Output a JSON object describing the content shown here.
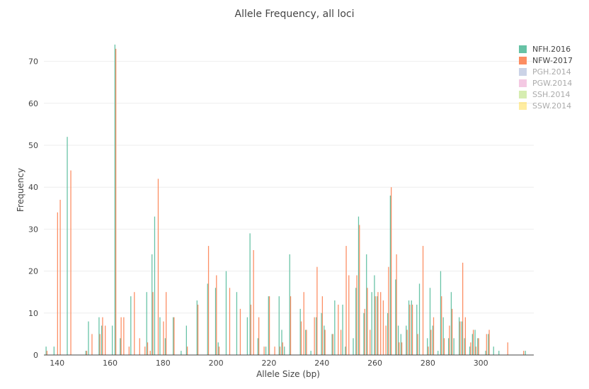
{
  "chart_data": {
    "type": "bar",
    "title": "Allele Frequency, all loci",
    "xlabel": "Allele Size (bp)",
    "ylabel": "Frequency",
    "xlim": [
      135,
      320
    ],
    "ylim": [
      0,
      75
    ],
    "x_ticks": [
      140,
      160,
      180,
      200,
      220,
      240,
      260,
      280,
      300
    ],
    "y_ticks": [
      0,
      10,
      20,
      30,
      40,
      50,
      60,
      70
    ],
    "grid": "horizontal",
    "legend_position": "top-right",
    "series": [
      {
        "name": "NFH.2016",
        "color": "#66c2a5",
        "visible": true,
        "points": [
          [
            136,
            2
          ],
          [
            139,
            2
          ],
          [
            144,
            52
          ],
          [
            151,
            1
          ],
          [
            152,
            8
          ],
          [
            156,
            9
          ],
          [
            157,
            7
          ],
          [
            161,
            7
          ],
          [
            162,
            74
          ],
          [
            164,
            4
          ],
          [
            168,
            14
          ],
          [
            174,
            15
          ],
          [
            176,
            24
          ],
          [
            177,
            33
          ],
          [
            179,
            9
          ],
          [
            181,
            4
          ],
          [
            184,
            9
          ],
          [
            187,
            1
          ],
          [
            189,
            7
          ],
          [
            193,
            13
          ],
          [
            197,
            17
          ],
          [
            200,
            16
          ],
          [
            201,
            3
          ],
          [
            204,
            20
          ],
          [
            208,
            15
          ],
          [
            212,
            9
          ],
          [
            213,
            29
          ],
          [
            216,
            4
          ],
          [
            219,
            2
          ],
          [
            220,
            14
          ],
          [
            224,
            14
          ],
          [
            225,
            6
          ],
          [
            226,
            2
          ],
          [
            228,
            24
          ],
          [
            232,
            11
          ],
          [
            234,
            6
          ],
          [
            236,
            1
          ],
          [
            238,
            9
          ],
          [
            240,
            10
          ],
          [
            241,
            7
          ],
          [
            244,
            5
          ],
          [
            245,
            13
          ],
          [
            248,
            12
          ],
          [
            249,
            2
          ],
          [
            252,
            4
          ],
          [
            253,
            16
          ],
          [
            254,
            33
          ],
          [
            256,
            10
          ],
          [
            257,
            24
          ],
          [
            259,
            15
          ],
          [
            260,
            19
          ],
          [
            261,
            14
          ],
          [
            265,
            10
          ],
          [
            266,
            38
          ],
          [
            268,
            18
          ],
          [
            269,
            7
          ],
          [
            270,
            5
          ],
          [
            272,
            7
          ],
          [
            273,
            13
          ],
          [
            274,
            13
          ],
          [
            276,
            12
          ],
          [
            277,
            17
          ],
          [
            280,
            4
          ],
          [
            281,
            16
          ],
          [
            282,
            7
          ],
          [
            284,
            1
          ],
          [
            285,
            20
          ],
          [
            286,
            9
          ],
          [
            288,
            4
          ],
          [
            289,
            15
          ],
          [
            290,
            4
          ],
          [
            292,
            9
          ],
          [
            293,
            8
          ],
          [
            294,
            4
          ],
          [
            296,
            2
          ],
          [
            297,
            5
          ],
          [
            298,
            6
          ],
          [
            299,
            4
          ],
          [
            302,
            1
          ],
          [
            303,
            5
          ],
          [
            305,
            2
          ],
          [
            307,
            1
          ],
          [
            317,
            1
          ]
        ]
      },
      {
        "name": "NFW-2017",
        "color": "#fc8d62",
        "visible": true,
        "points": [
          [
            136,
            1
          ],
          [
            140,
            34
          ],
          [
            141,
            37
          ],
          [
            145,
            44
          ],
          [
            151,
            1
          ],
          [
            153,
            5
          ],
          [
            156,
            5
          ],
          [
            157,
            9
          ],
          [
            158,
            7
          ],
          [
            162,
            73
          ],
          [
            164,
            9
          ],
          [
            165,
            9
          ],
          [
            167,
            2
          ],
          [
            169,
            15
          ],
          [
            171,
            4
          ],
          [
            173,
            2
          ],
          [
            174,
            3
          ],
          [
            175,
            1
          ],
          [
            176,
            15
          ],
          [
            178,
            42
          ],
          [
            180,
            8
          ],
          [
            181,
            15
          ],
          [
            184,
            9
          ],
          [
            189,
            2
          ],
          [
            193,
            12
          ],
          [
            197,
            26
          ],
          [
            200,
            19
          ],
          [
            201,
            2
          ],
          [
            205,
            16
          ],
          [
            209,
            11
          ],
          [
            213,
            12
          ],
          [
            214,
            25
          ],
          [
            216,
            9
          ],
          [
            218,
            2
          ],
          [
            220,
            14
          ],
          [
            222,
            2
          ],
          [
            224,
            2
          ],
          [
            225,
            3
          ],
          [
            228,
            14
          ],
          [
            232,
            8
          ],
          [
            233,
            15
          ],
          [
            234,
            6
          ],
          [
            237,
            9
          ],
          [
            238,
            21
          ],
          [
            240,
            14
          ],
          [
            241,
            6
          ],
          [
            244,
            5
          ],
          [
            246,
            12
          ],
          [
            247,
            6
          ],
          [
            249,
            26
          ],
          [
            250,
            19
          ],
          [
            253,
            19
          ],
          [
            254,
            31
          ],
          [
            256,
            11
          ],
          [
            257,
            16
          ],
          [
            258,
            6
          ],
          [
            260,
            14
          ],
          [
            261,
            15
          ],
          [
            262,
            15
          ],
          [
            263,
            13
          ],
          [
            264,
            7
          ],
          [
            265,
            21
          ],
          [
            266,
            40
          ],
          [
            268,
            24
          ],
          [
            269,
            3
          ],
          [
            270,
            3
          ],
          [
            272,
            6
          ],
          [
            273,
            12
          ],
          [
            274,
            12
          ],
          [
            276,
            5
          ],
          [
            278,
            26
          ],
          [
            280,
            2
          ],
          [
            281,
            6
          ],
          [
            282,
            9
          ],
          [
            285,
            14
          ],
          [
            286,
            4
          ],
          [
            288,
            7
          ],
          [
            289,
            11
          ],
          [
            292,
            8
          ],
          [
            293,
            22
          ],
          [
            294,
            9
          ],
          [
            296,
            3
          ],
          [
            297,
            6
          ],
          [
            298,
            2
          ],
          [
            299,
            4
          ],
          [
            302,
            5
          ],
          [
            303,
            6
          ],
          [
            310,
            3
          ],
          [
            316,
            1
          ]
        ]
      },
      {
        "name": "PGH.2014",
        "color": "#8da0cb",
        "visible": false,
        "points": []
      },
      {
        "name": "PGW.2014",
        "color": "#e78ac3",
        "visible": false,
        "points": []
      },
      {
        "name": "SSH.2014",
        "color": "#a6d854",
        "visible": false,
        "points": []
      },
      {
        "name": "SSW.2014",
        "color": "#ffd92f",
        "visible": false,
        "points": []
      }
    ]
  }
}
